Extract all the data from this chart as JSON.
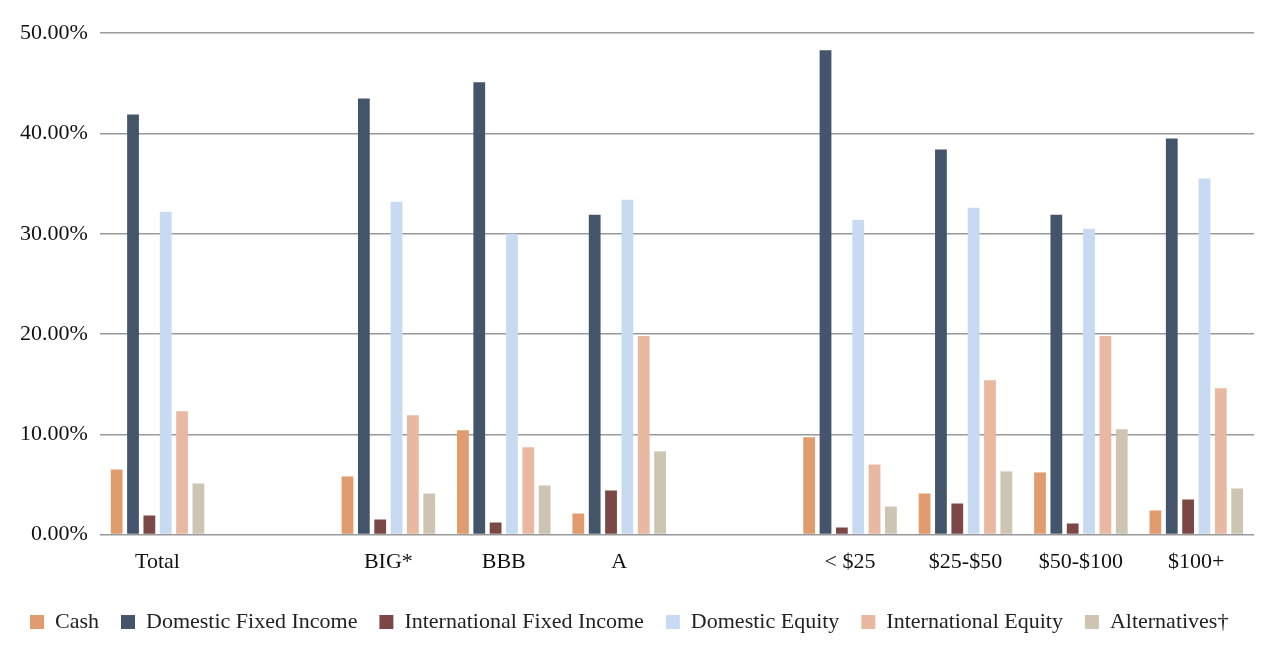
{
  "chart_data": {
    "type": "bar",
    "categories": [
      "Total",
      null,
      "BIG*",
      "BBB",
      "A",
      null,
      "< $25",
      "$25-$50",
      "$50-$100",
      "$100+"
    ],
    "series": [
      {
        "name": "Cash",
        "color": "#e09c6e",
        "values": [
          6.5,
          null,
          5.8,
          10.4,
          2.1,
          null,
          9.7,
          4.1,
          6.2,
          2.4
        ]
      },
      {
        "name": "Domestic Fixed Income",
        "color": "#44546a",
        "values": [
          41.9,
          null,
          43.5,
          45.1,
          31.9,
          null,
          48.3,
          38.4,
          31.9,
          39.5
        ]
      },
      {
        "name": "International Fixed Income",
        "color": "#7b4747",
        "values": [
          1.9,
          null,
          1.5,
          1.2,
          4.4,
          null,
          0.7,
          3.1,
          1.1,
          3.5
        ]
      },
      {
        "name": "Domestic Equity",
        "color": "#c8daf2",
        "values": [
          32.2,
          null,
          33.2,
          30.0,
          33.4,
          null,
          31.4,
          32.6,
          30.5,
          35.5
        ]
      },
      {
        "name": "International Equity",
        "color": "#e9b8a0",
        "values": [
          12.3,
          null,
          11.9,
          8.7,
          19.8,
          null,
          7.0,
          15.4,
          19.8,
          14.6
        ]
      },
      {
        "name": "Alternatives†",
        "color": "#cdc4b4",
        "values": [
          5.1,
          null,
          4.1,
          4.9,
          8.3,
          null,
          2.8,
          6.3,
          10.5,
          4.6
        ]
      }
    ],
    "ylim": [
      0,
      50
    ],
    "yticks": [
      {
        "value": 0,
        "label": "0.00%"
      },
      {
        "value": 10,
        "label": "10.00%"
      },
      {
        "value": 20,
        "label": "20.00%"
      },
      {
        "value": 30,
        "label": "30.00%"
      },
      {
        "value": 40,
        "label": "40.00%"
      },
      {
        "value": 50,
        "label": "50.00%"
      }
    ],
    "grid": "y",
    "legend": "bottom"
  }
}
